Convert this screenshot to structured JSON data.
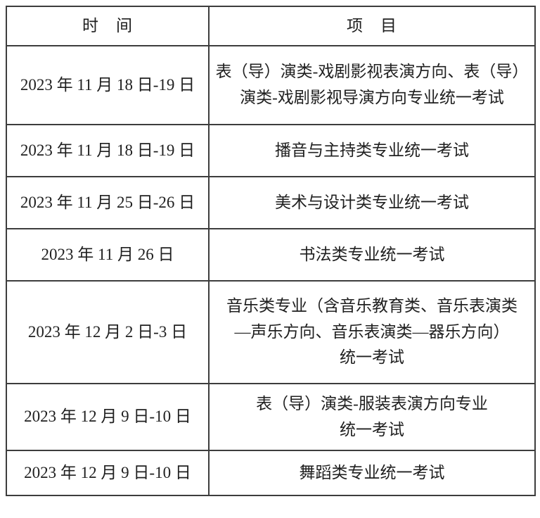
{
  "table": {
    "headers": [
      "时　间",
      "项　目"
    ],
    "rows": [
      {
        "time": "2023 年 11 月 18 日-19 日",
        "item": [
          "表（导）演类-戏剧影视表演方向、表（导）",
          "演类-戏剧影视导演方向专业统一考试"
        ]
      },
      {
        "time": "2023 年 11 月 18 日-19 日",
        "item": "播音与主持类专业统一考试"
      },
      {
        "time": "2023 年 11 月 25 日-26 日",
        "item": "美术与设计类专业统一考试"
      },
      {
        "time": "2023 年 11 月 26 日",
        "item": "书法类专业统一考试"
      },
      {
        "time": "2023 年 12 月 2 日-3 日",
        "item": [
          "音乐类专业（含音乐教育类、音乐表演类",
          "—声乐方向、音乐表演类—器乐方向）",
          "统一考试"
        ]
      },
      {
        "time": "2023 年 12 月 9 日-10 日",
        "item": [
          "表（导）演类-服装表演方向专业",
          "统一考试"
        ]
      },
      {
        "time": "2023 年 12 月 9 日-10 日",
        "item": "舞蹈类专业统一考试"
      }
    ],
    "border_color": "#3d3d3d",
    "text_color": "#1f1f1f",
    "background_color": "#ffffff"
  }
}
